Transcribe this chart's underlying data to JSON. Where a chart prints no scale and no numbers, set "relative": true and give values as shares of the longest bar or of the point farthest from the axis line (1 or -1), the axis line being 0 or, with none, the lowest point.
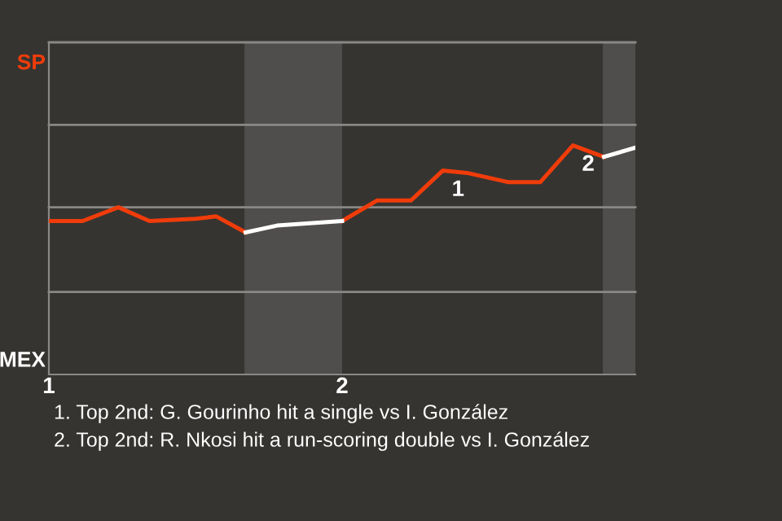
{
  "chart_data": {
    "type": "line",
    "relative": true,
    "x": [
      1.0,
      1.115,
      1.237,
      1.343,
      1.5,
      1.571,
      1.671,
      1.778,
      2.0,
      2.12,
      2.235,
      2.343,
      2.426,
      2.565,
      2.676,
      2.787,
      2.893,
      3.0
    ],
    "series": [
      {
        "color": "#f03c0a",
        "values": [
          0.67,
          0.67,
          0.73,
          0.67,
          0.68,
          0.69,
          0.62,
          null,
          0.67,
          0.76,
          0.76,
          0.89,
          0.88,
          0.84,
          0.84,
          1,
          0.95,
          null
        ]
      },
      {
        "color": "#ffffff",
        "values": [
          null,
          null,
          null,
          null,
          null,
          null,
          0.62,
          0.65,
          0.67,
          null,
          null,
          null,
          null,
          null,
          null,
          null,
          0.95,
          0.99
        ]
      }
    ],
    "xlim": [
      1,
      3
    ],
    "xticks": [
      1,
      2
    ],
    "marker": "none",
    "line_style": "solid",
    "ref_lines": [
      {
        "axis": "y",
        "value": 0.36,
        "color": "#8a8886"
      },
      {
        "axis": "y",
        "value": 0.73,
        "color": "#8a8886"
      },
      {
        "axis": "y",
        "value": 1.09,
        "color": "#8a8886"
      },
      {
        "axis": "y",
        "value": 1.45,
        "color": "#8a8886"
      }
    ],
    "bands": [
      {
        "axis": "x",
        "from": 1.667,
        "to": 2.0,
        "color": "#4f4e4c"
      },
      {
        "axis": "x",
        "from": 2.889,
        "to": 3.0,
        "color": "#4f4e4c"
      }
    ],
    "annotations": [
      "SP",
      "MEX",
      {
        "text": "1",
        "x": 2.343,
        "y": 0.89
      },
      {
        "text": "2",
        "x": 2.787,
        "y": 1
      },
      "1. Top 2nd: G. Gourinho hit a single vs I. González",
      "2. Top 2nd: R. Nkosi hit a run-scoring double vs I. González"
    ]
  }
}
